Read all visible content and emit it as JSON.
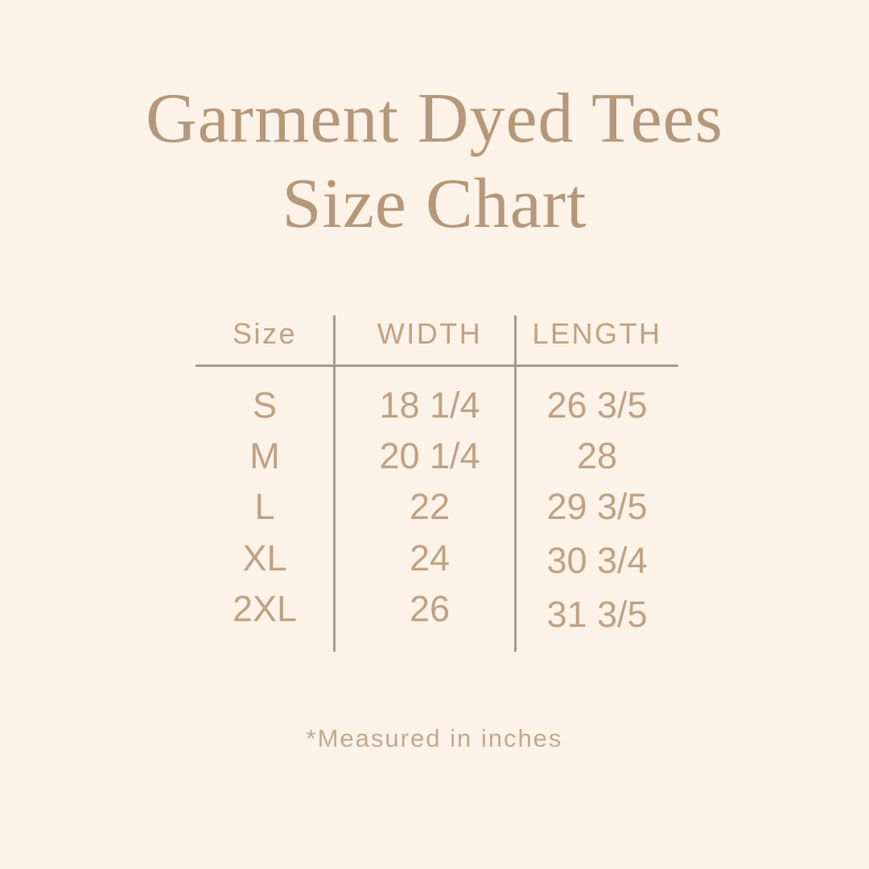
{
  "colors": {
    "background": "#fcf2e7",
    "title": "#b49879",
    "text": "#bfa284",
    "line": "#a79a8c",
    "note": "#c2a98e"
  },
  "title": {
    "line1": "Garment Dyed Tees",
    "line2": "Size Chart"
  },
  "table": {
    "columns": [
      "Size",
      "WIDTH",
      "LENGTH"
    ],
    "rows": [
      {
        "size": "S",
        "width": "18 1/4",
        "length": "26 3/5"
      },
      {
        "size": "M",
        "width": "20 1/4",
        "length": "28"
      },
      {
        "size": "L",
        "width": "22",
        "length": "29 3/5"
      },
      {
        "size": "XL",
        "width": "24",
        "length": "30 3/4"
      },
      {
        "size": "2XL",
        "width": "26",
        "length": "31 3/5"
      }
    ]
  },
  "footnote": {
    "text": "*Measured in inches"
  },
  "chart_data": {
    "type": "table",
    "title": "Garment Dyed Tees Size Chart",
    "columns": [
      "Size",
      "WIDTH",
      "LENGTH"
    ],
    "rows": [
      [
        "S",
        "18 1/4",
        "26 3/5"
      ],
      [
        "M",
        "20 1/4",
        "28"
      ],
      [
        "L",
        "22",
        "29 3/5"
      ],
      [
        "XL",
        "24",
        "30 3/4"
      ],
      [
        "2XL",
        "26",
        "31 3/5"
      ]
    ],
    "units": "inches",
    "note": "*Measured in inches"
  }
}
